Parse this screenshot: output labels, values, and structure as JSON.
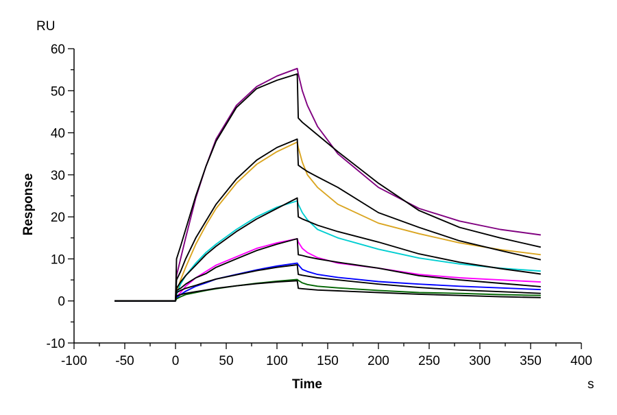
{
  "chart_data": {
    "type": "line",
    "title": "",
    "xlabel": "Time",
    "ylabel": "Response",
    "x_unit": "s",
    "y_unit": "RU",
    "xlim": [
      -100,
      400
    ],
    "ylim": [
      -10,
      60
    ],
    "x_ticks": [
      -100,
      -50,
      0,
      50,
      100,
      150,
      200,
      250,
      300,
      350,
      400
    ],
    "y_ticks": [
      -10,
      0,
      10,
      20,
      30,
      40,
      50,
      60
    ],
    "x_tick_labels": [
      "-100",
      "-50",
      "0",
      "50",
      "100",
      "150",
      "200",
      "250",
      "300",
      "350",
      "400"
    ],
    "y_tick_labels": [
      "-10",
      "0",
      "10",
      "20",
      "30",
      "40",
      "50",
      "60"
    ],
    "grid": false,
    "legend": "none",
    "x": [
      -60,
      -40,
      -20,
      0,
      1,
      5,
      10,
      20,
      30,
      40,
      60,
      80,
      100,
      120,
      121,
      125,
      130,
      140,
      160,
      200,
      240,
      280,
      320,
      360
    ],
    "series": [
      {
        "color": "#800080",
        "kind": "data",
        "values": [
          0,
          0,
          0,
          0,
          6,
          10,
          15,
          24.5,
          32,
          38.5,
          46.5,
          51,
          53.5,
          55.3,
          54,
          50,
          46.5,
          41.5,
          35,
          27,
          22,
          19,
          17,
          15.7
        ]
      },
      {
        "color": "#DAA520",
        "kind": "data",
        "values": [
          0,
          0,
          0,
          0,
          2,
          5,
          8,
          13.5,
          18,
          22,
          28,
          32.5,
          35.5,
          37.8,
          36.5,
          33,
          30,
          27,
          23,
          18.5,
          16,
          13.8,
          12.2,
          11
        ]
      },
      {
        "color": "#00CED1",
        "kind": "data",
        "values": [
          0,
          0,
          0,
          0,
          1.5,
          4,
          6,
          9,
          11.5,
          13.5,
          17,
          20,
          22.3,
          23.8,
          23,
          21,
          19.3,
          17,
          15,
          12.3,
          10.2,
          8.8,
          7.8,
          7.1
        ]
      },
      {
        "color": "#FF00FF",
        "kind": "data",
        "values": [
          0,
          0,
          0,
          0,
          1,
          2,
          3.5,
          5.5,
          7,
          8.5,
          10.5,
          12.5,
          13.8,
          14.8,
          14,
          12.5,
          11.5,
          10.3,
          9,
          7.8,
          6.3,
          5.5,
          5,
          4.5
        ]
      },
      {
        "color": "#0000FF",
        "kind": "data",
        "values": [
          0,
          0,
          0,
          0,
          0.8,
          1.5,
          2.3,
          3.5,
          4.3,
          5.2,
          6.3,
          7.4,
          8.3,
          9,
          8.6,
          7.5,
          7,
          6.3,
          5.6,
          4.6,
          4,
          3.5,
          3.1,
          2.7
        ]
      },
      {
        "color": "#006400",
        "kind": "data",
        "values": [
          0,
          0,
          0,
          0,
          0.5,
          1,
          1.5,
          2,
          2.5,
          2.9,
          3.6,
          4.2,
          4.7,
          5.1,
          4.9,
          4.3,
          3.9,
          3.5,
          3.1,
          2.5,
          2,
          1.8,
          1.5,
          1.3
        ]
      },
      {
        "color": "#000000",
        "kind": "fit",
        "values": [
          0,
          0,
          0,
          0,
          10,
          13,
          17,
          25,
          32,
          38,
          46,
          50.5,
          52.5,
          54,
          43.5,
          42.5,
          41.5,
          39.5,
          35.5,
          28,
          21.5,
          17.5,
          15,
          12.8
        ]
      },
      {
        "color": "#000000",
        "kind": "fit",
        "values": [
          0,
          0,
          0,
          0,
          5,
          7,
          10,
          15,
          19,
          23,
          29,
          33.5,
          36.5,
          38.5,
          32.3,
          31.6,
          30.8,
          29.5,
          27,
          21,
          17.5,
          14.3,
          12,
          9.8
        ]
      },
      {
        "color": "#000000",
        "kind": "fit",
        "values": [
          0,
          0,
          0,
          0,
          3,
          4.5,
          6,
          8.5,
          11,
          13,
          16.5,
          19.5,
          22,
          24.5,
          20,
          19.5,
          19,
          18,
          16.5,
          14,
          11.2,
          9.2,
          7.7,
          6.4
        ]
      },
      {
        "color": "#000000",
        "kind": "fit",
        "values": [
          0,
          0,
          0,
          0,
          2.5,
          3,
          4,
          5.5,
          6.5,
          8,
          10,
          12,
          13.5,
          14.8,
          11,
          10.8,
          10.5,
          10,
          9.2,
          7.8,
          6,
          5,
          4.2,
          3.4
        ]
      },
      {
        "color": "#000000",
        "kind": "fit",
        "values": [
          0,
          0,
          0,
          0,
          2,
          2.5,
          3,
          3.7,
          4.5,
          5.2,
          6.2,
          7.2,
          8,
          8.6,
          6.3,
          6.1,
          5.9,
          5.5,
          5,
          4,
          3.2,
          2.6,
          2.2,
          1.8
        ]
      },
      {
        "color": "#000000",
        "kind": "fit",
        "values": [
          0,
          0,
          0,
          0,
          1.2,
          1.5,
          1.8,
          2.2,
          2.6,
          3,
          3.6,
          4.1,
          4.5,
          4.8,
          3,
          2.9,
          2.8,
          2.6,
          2.4,
          2,
          1.6,
          1.3,
          1,
          0.8
        ]
      }
    ]
  }
}
